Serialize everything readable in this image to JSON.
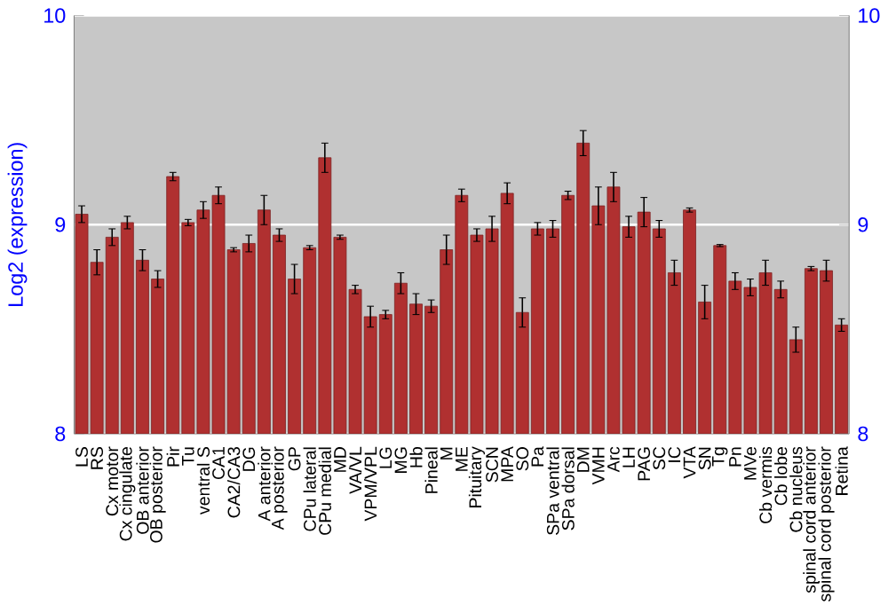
{
  "chart_data": {
    "type": "bar",
    "ylabel": "Log2 (expression)",
    "categories": [
      "LS",
      "RS",
      "Cx motor",
      "Cx cingulate",
      "OB anterior",
      "OB posterior",
      "Pir",
      "Tu",
      "ventral S",
      "CA1",
      "CA2/CA3",
      "DG",
      "A anterior",
      "A posterior",
      "GP",
      "CPu lateral",
      "CPu medial",
      "MD",
      "VA/VL",
      "VPM/VPL",
      "LG",
      "MG",
      "Hb",
      "Pineal",
      "M",
      "ME",
      "Pituitary",
      "SCN",
      "MPA",
      "SO",
      "Pa",
      "SPa ventral",
      "SPa dorsal",
      "DM",
      "VMH",
      "Arc",
      "LH",
      "PAG",
      "SC",
      "IC",
      "VTA",
      "SN",
      "Tg",
      "Pn",
      "MVe",
      "Cb vermis",
      "Cb lobe",
      "Cb nucleus",
      "spinal cord anterior",
      "spinal cord posterior",
      "Retina"
    ],
    "values": [
      9.05,
      8.82,
      8.94,
      9.01,
      8.83,
      8.74,
      9.23,
      9.01,
      9.07,
      9.14,
      8.88,
      8.91,
      9.07,
      8.95,
      8.74,
      8.89,
      9.32,
      8.94,
      8.69,
      8.56,
      8.57,
      8.72,
      8.62,
      8.61,
      8.88,
      9.14,
      8.95,
      8.98,
      9.15,
      8.58,
      8.98,
      8.98,
      9.14,
      9.39,
      9.09,
      9.18,
      8.99,
      9.06,
      8.98,
      8.77,
      9.07,
      8.63,
      8.9,
      8.73,
      8.7,
      8.77,
      8.69,
      8.45,
      8.79,
      8.78,
      8.52
    ],
    "errors": [
      0.04,
      0.06,
      0.04,
      0.03,
      0.05,
      0.04,
      0.02,
      0.015,
      0.04,
      0.04,
      0.01,
      0.04,
      0.07,
      0.03,
      0.07,
      0.01,
      0.07,
      0.01,
      0.02,
      0.05,
      0.02,
      0.05,
      0.05,
      0.03,
      0.07,
      0.03,
      0.03,
      0.06,
      0.05,
      0.07,
      0.03,
      0.04,
      0.02,
      0.06,
      0.09,
      0.07,
      0.05,
      0.07,
      0.04,
      0.06,
      0.01,
      0.08,
      0.005,
      0.04,
      0.04,
      0.06,
      0.04,
      0.06,
      0.01,
      0.05,
      0.03
    ],
    "color": "#b03030",
    "ylim": [
      8,
      10
    ],
    "yticks": [
      8,
      9,
      10
    ],
    "y2lim": [
      8,
      10
    ],
    "y2ticks": [
      8,
      9,
      10
    ],
    "grid": "y"
  }
}
